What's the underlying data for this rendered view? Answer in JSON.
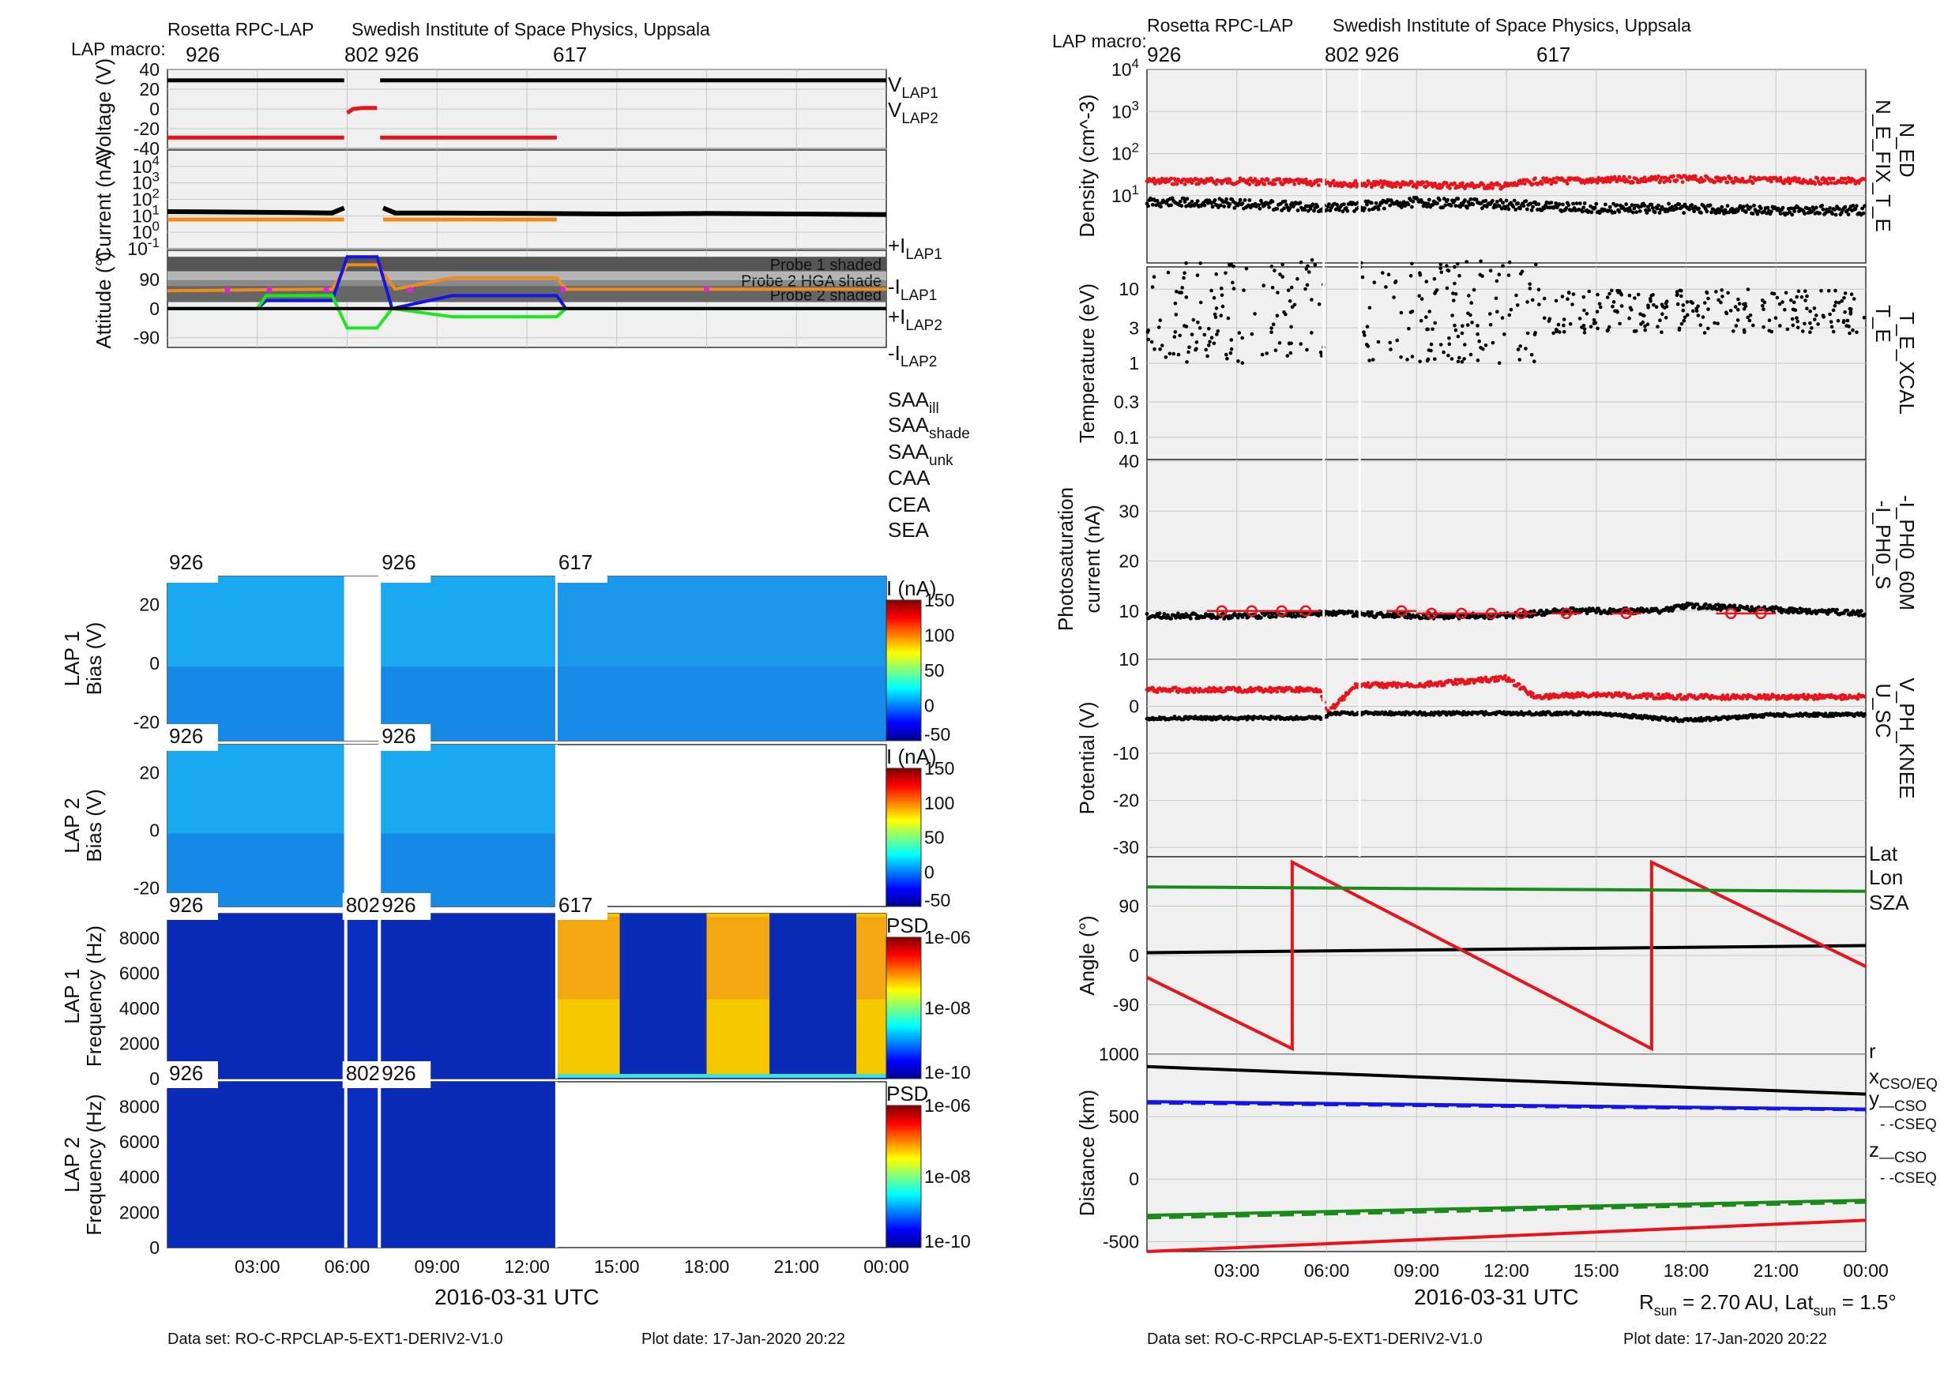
{
  "header": {
    "left_title": "Rosetta RPC-LAP",
    "right_title": "Swedish Institute of Space Physics, Uppsala",
    "macro_label": "LAP macro:",
    "macros": [
      "926",
      "802",
      "926",
      "617"
    ]
  },
  "footer": {
    "dataset": "Data set: RO-C-RPCLAP-5-EXT1-DERIV2-V1.0",
    "plot_date": "Plot date: 17-Jan-2020 20:22",
    "rsun_text": "R",
    "rsun_sub": "sun",
    "rsun_val": " = 2.70 AU, Lat",
    "lat_sub": "sun",
    "lat_val": " = 1.5°"
  },
  "x_axis": {
    "label": "2016-03-31 UTC",
    "ticks": [
      "03:00",
      "06:00",
      "09:00",
      "12:00",
      "15:00",
      "18:00",
      "21:00",
      "00:00"
    ]
  },
  "colors": {
    "black": "#000000",
    "red": "#e8141c",
    "orange": "#f08c1e",
    "gray": "#888888",
    "magenta": "#e81ce8",
    "blue": "#1414e8",
    "green": "#1ce81c",
    "darkgreen": "#1a8a1a",
    "panel_bg": "#f0f0f0"
  },
  "chart_data": [
    {
      "type": "line",
      "panel": "voltage",
      "ylabel": "Voltage (V)",
      "yticks": [
        "40",
        "20",
        "0",
        "-20",
        "-40"
      ],
      "ylim": [
        -40,
        40
      ],
      "legend": [
        "V_LAP1",
        "V_LAP2"
      ],
      "series": [
        {
          "name": "V_LAP1",
          "segments": [
            [
              [
                0,
                29
              ],
              [
                5.9,
                29
              ]
            ],
            [
              [
                7.1,
                29
              ],
              [
                24,
                29
              ]
            ]
          ]
        },
        {
          "name": "V_LAP2",
          "segments": [
            [
              [
                0,
                -29
              ],
              [
                5.9,
                -29
              ]
            ],
            [
              [
                7.1,
                -29
              ],
              [
                13,
                -29
              ]
            ],
            [
              [
                6.0,
                -4
              ],
              [
                6.2,
                0
              ],
              [
                6.5,
                1
              ],
              [
                7.0,
                1
              ]
            ]
          ]
        }
      ]
    },
    {
      "type": "scatter",
      "panel": "current",
      "ylabel": "Current (nA)",
      "yticks": [
        "10^4",
        "10^3",
        "10^2",
        "10^1",
        "10^0",
        "10^-1"
      ],
      "ylim": [
        -1,
        5
      ],
      "yscale": "log",
      "legend": [
        "+I_LAP1",
        "-I_LAP1",
        "+I_LAP2",
        "-I_LAP2"
      ],
      "series": [
        {
          "name": "+I_LAP1",
          "x": [
            0,
            2,
            4,
            5.5,
            5.9,
            7.2,
            7.6,
            9,
            12,
            15,
            18,
            21,
            24
          ],
          "y": [
            18,
            17,
            16,
            15,
            30,
            30,
            15,
            15,
            14,
            13,
            14,
            13,
            12
          ]
        },
        {
          "name": "-I_LAP2",
          "x": [
            0,
            3,
            5.9,
            7.2,
            10,
            13
          ],
          "y": [
            6,
            6,
            6,
            6,
            6,
            6
          ]
        }
      ]
    },
    {
      "type": "line",
      "panel": "attitude",
      "ylabel": "Attitude (°)",
      "yticks": [
        "90",
        "0",
        "-90"
      ],
      "ylim": [
        -120,
        180
      ],
      "shaded_bands": [
        "Probe 1 shaded",
        "Probe 2 HGA shade",
        "Probe 2 shaded"
      ],
      "legend": [
        "SAA_ill",
        "SAA_shade",
        "SAA_unk",
        "CAA",
        "CEA",
        "SEA"
      ],
      "series": [
        {
          "name": "SAA",
          "x": [
            0,
            3,
            5.5,
            6.0,
            7.0,
            7.6,
            9.5,
            13,
            13.3,
            24
          ],
          "y": [
            55,
            58,
            60,
            135,
            135,
            60,
            95,
            95,
            60,
            60
          ]
        },
        {
          "name": "CAA",
          "x": [
            0,
            3,
            3.3,
            5.5,
            6.0,
            7.0,
            7.5,
            9.5,
            13,
            13.3,
            24
          ],
          "y": [
            0,
            0,
            25,
            25,
            160,
            160,
            0,
            40,
            40,
            0,
            0
          ]
        },
        {
          "name": "CEA",
          "x": [
            0,
            3,
            3.3,
            5.5,
            6.0,
            7.0,
            7.5,
            9.5,
            13,
            13.3,
            24
          ],
          "y": [
            0,
            0,
            40,
            40,
            -60,
            -60,
            0,
            -25,
            -25,
            0,
            0
          ]
        },
        {
          "name": "SEA",
          "x": [
            0,
            24
          ],
          "y": [
            0,
            0
          ]
        }
      ]
    },
    {
      "type": "heatmap",
      "panel": "lap1_bias",
      "ylabel": "LAP 1 Bias (V)",
      "yticks": [
        "20",
        "0",
        "-20"
      ],
      "colorbar_label": "I (nA)",
      "colorbar_ticks": [
        "150",
        "100",
        "50",
        "0",
        "-50"
      ]
    },
    {
      "type": "heatmap",
      "panel": "lap2_bias",
      "ylabel": "LAP 2 Bias (V)",
      "yticks": [
        "20",
        "0",
        "-20"
      ],
      "colorbar_label": "I (nA)",
      "colorbar_ticks": [
        "150",
        "100",
        "50",
        "0",
        "-50"
      ]
    },
    {
      "type": "heatmap",
      "panel": "lap1_freq",
      "ylabel": "LAP 1 Frequency (Hz)",
      "yticks": [
        "8000",
        "6000",
        "4000",
        "2000",
        "0"
      ],
      "colorbar_label": "PSD",
      "colorbar_ticks": [
        "1e-06",
        "1e-08",
        "1e-10"
      ]
    },
    {
      "type": "heatmap",
      "panel": "lap2_freq",
      "ylabel": "LAP 2 Frequency (Hz)",
      "yticks": [
        "8000",
        "6000",
        "4000",
        "2000",
        "0"
      ],
      "colorbar_label": "PSD",
      "colorbar_ticks": [
        "1e-06",
        "1e-08",
        "1e-10"
      ]
    },
    {
      "type": "scatter",
      "panel": "density",
      "ylabel": "Density (cm^-3)",
      "yticks": [
        "10^4",
        "10^3",
        "10^2",
        "10^1"
      ],
      "ylim": [
        0,
        4
      ],
      "yscale": "log",
      "legend": [
        "N_ED",
        "N_E_FIX_T_E"
      ],
      "series": [
        {
          "name": "N_ED",
          "x": [
            0,
            3,
            6,
            9,
            12,
            13,
            15,
            18,
            21,
            24
          ],
          "y": [
            22,
            22,
            20,
            18,
            17,
            22,
            23,
            25,
            23,
            22
          ]
        },
        {
          "name": "N_E_FIX_T_E",
          "x": [
            0,
            3,
            6,
            7,
            9,
            12,
            15,
            18,
            21,
            24
          ],
          "y": [
            7,
            6.5,
            5,
            5.5,
            7,
            6,
            5,
            5,
            4.5,
            4.5
          ]
        }
      ]
    },
    {
      "type": "scatter",
      "panel": "temperature",
      "ylabel": "Temperature (eV)",
      "yticks": [
        "10",
        "3",
        "1",
        "0.3",
        "0.1"
      ],
      "ylim": [
        0.05,
        20
      ],
      "yscale": "log",
      "legend": [
        "T_E_XCAL",
        "T_E"
      ]
    },
    {
      "type": "scatter",
      "panel": "photosaturation",
      "ylabel": "Photosaturation current (nA)",
      "yticks": [
        "40",
        "30",
        "20",
        "10"
      ],
      "ylim": [
        0,
        40
      ],
      "legend": [
        "-I_PH0_60M",
        "-I_PH0_S"
      ],
      "series": [
        {
          "name": "-I_PH0_60M",
          "x": [
            2.5,
            3.5,
            4.5,
            5.3,
            8.5,
            9.5,
            10.5,
            11.5,
            12.5,
            14,
            16,
            19.5,
            20.5
          ],
          "y": [
            10,
            10,
            10,
            10,
            10,
            9.5,
            9.5,
            9.5,
            9.5,
            9.5,
            9.5,
            9.5,
            9.5
          ]
        },
        {
          "name": "-I_PH0_S",
          "x": [
            0,
            3,
            6,
            9,
            12,
            14,
            17,
            18,
            24
          ],
          "y": [
            9,
            9,
            9.5,
            9,
            9,
            10,
            10,
            11,
            9.5
          ]
        }
      ]
    },
    {
      "type": "scatter",
      "panel": "potential",
      "ylabel": "Potential (V)",
      "yticks": [
        "10",
        "0",
        "-10",
        "-20",
        "-30"
      ],
      "ylim": [
        -32,
        10
      ],
      "legend": [
        "V_PH_KNEE",
        "U_SC"
      ],
      "series": [
        {
          "name": "V_PH_KNEE",
          "x": [
            0,
            3,
            5.8,
            6.0,
            7.0,
            9,
            12,
            13,
            15,
            18,
            24
          ],
          "y": [
            3.5,
            3.5,
            3.5,
            -1.5,
            4.5,
            4.5,
            6,
            2,
            2.5,
            2,
            2
          ]
        },
        {
          "name": "U_SC",
          "x": [
            0,
            3,
            5.8,
            6.2,
            9,
            12,
            15,
            18,
            21,
            24
          ],
          "y": [
            -2.5,
            -2.5,
            -2.5,
            -1.5,
            -1.5,
            -1.5,
            -1.5,
            -3,
            -1.8,
            -1.8
          ]
        }
      ]
    },
    {
      "type": "line",
      "panel": "angle",
      "ylabel": "Angle (°)",
      "yticks": [
        "90",
        "0",
        "-90"
      ],
      "ylim": [
        -180,
        180
      ],
      "legend": [
        "Lat",
        "Lon",
        "SZA"
      ],
      "series": [
        {
          "name": "Lat",
          "x": [
            0,
            24
          ],
          "y": [
            5,
            18
          ]
        },
        {
          "name": "Lon",
          "x": [
            0,
            4.85,
            4.85,
            16.85,
            16.85,
            24
          ],
          "y": [
            -40,
            -170,
            170,
            -170,
            170,
            -20
          ]
        },
        {
          "name": "SZA",
          "x": [
            0,
            24
          ],
          "y": [
            125,
            117
          ]
        }
      ]
    },
    {
      "type": "line",
      "panel": "distance",
      "ylabel": "Distance (km)",
      "yticks": [
        "1000",
        "500",
        "0",
        "-500"
      ],
      "ylim": [
        -580,
        1000
      ],
      "legend": [
        "r",
        "x_CSO/EQ",
        "y_—CSO",
        "- -CSEQ",
        "z_—CSO",
        "- -CSEQ"
      ],
      "series": [
        {
          "name": "r",
          "x": [
            0,
            24
          ],
          "y": [
            900,
            680
          ]
        },
        {
          "name": "x_CSO/EQ",
          "x": [
            0,
            24
          ],
          "y": [
            -580,
            -330
          ]
        },
        {
          "name": "y_CSO",
          "x": [
            0,
            24
          ],
          "y": [
            -290,
            -170
          ]
        },
        {
          "name": "y_CSEQ",
          "x": [
            0,
            24
          ],
          "y": [
            -310,
            -185
          ]
        },
        {
          "name": "z_CSO",
          "x": [
            0,
            24
          ],
          "y": [
            620,
            560
          ]
        },
        {
          "name": "z_CSEQ",
          "x": [
            0,
            24
          ],
          "y": [
            610,
            555
          ]
        }
      ]
    }
  ],
  "left_legends": {
    "voltage": [
      [
        "V",
        "LAP1",
        "#000000"
      ],
      [
        "V",
        "LAP2",
        "#e8141c"
      ]
    ],
    "current": [
      [
        "+I",
        "LAP1",
        "#000000"
      ],
      [
        "-I",
        "LAP1",
        "#888888"
      ],
      [
        "+I",
        "LAP2",
        "#e8141c"
      ],
      [
        "-I",
        "LAP2",
        "#f08c1e"
      ]
    ],
    "attitude": [
      [
        "SAA",
        "ill",
        "#e8141c"
      ],
      [
        "SAA",
        "shade",
        "#f08c1e"
      ],
      [
        "SAA",
        "unk",
        "#e81ce8"
      ],
      [
        "CAA",
        "",
        "#1414e8"
      ],
      [
        "CEA",
        "",
        "#1ce81c"
      ],
      [
        "SEA",
        "",
        "#000000"
      ]
    ]
  },
  "right_legends": {
    "density": [
      [
        "N_ED",
        "#e8141c"
      ],
      [
        "N_E_FIX_T_E",
        "#000000"
      ]
    ],
    "temperature": [
      [
        "T_E_XCAL",
        "#e8141c"
      ],
      [
        "T_E",
        "#000000"
      ]
    ],
    "photo": [
      [
        "-I_PH0_60M",
        "#e8141c"
      ],
      [
        "-I_PH0_S",
        "#000000"
      ]
    ],
    "potential": [
      [
        "V_PH_KNEE",
        "#e8141c"
      ],
      [
        "U_SC",
        "#000000"
      ]
    ]
  }
}
